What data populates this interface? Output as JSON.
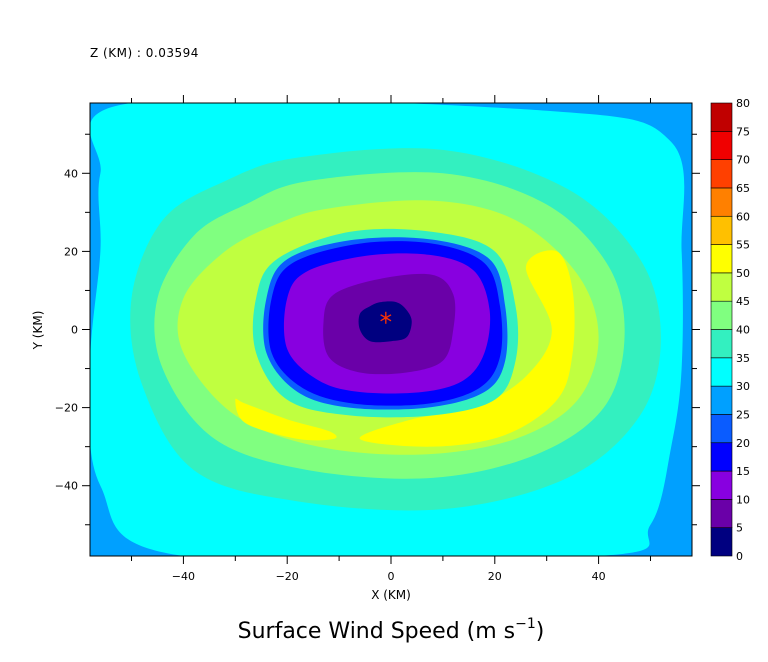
{
  "header": {
    "z_label": "Z (KM) : 0.03594"
  },
  "chart_data": {
    "type": "heatmap",
    "title": "Surface Wind Speed (m s",
    "title_exponent": "−1",
    "title_close": ")",
    "xlabel": "X (KM)",
    "ylabel": "Y (KM)",
    "xlim": [
      -58,
      58
    ],
    "ylim": [
      -58,
      58
    ],
    "x_ticks": [
      {
        "value": -40,
        "label": "−40"
      },
      {
        "value": -20,
        "label": "−20"
      },
      {
        "value": 0,
        "label": "0"
      },
      {
        "value": 20,
        "label": "20"
      },
      {
        "value": 40,
        "label": "40"
      }
    ],
    "y_ticks": [
      {
        "value": -40,
        "label": "−40"
      },
      {
        "value": -20,
        "label": "−20"
      },
      {
        "value": 0,
        "label": "0"
      },
      {
        "value": 20,
        "label": "20"
      },
      {
        "value": 40,
        "label": "40"
      }
    ],
    "center_marker": {
      "x": -1,
      "y": 3,
      "color": "#ff3300"
    },
    "colorbar": {
      "levels": [
        0,
        5,
        10,
        15,
        20,
        25,
        30,
        35,
        40,
        45,
        50,
        55,
        60,
        65,
        70,
        75,
        80
      ],
      "colors": [
        "#000080",
        "#6a00a8",
        "#8800e0",
        "#0000ff",
        "#0a5cff",
        "#00a0ff",
        "#00ffff",
        "#33f0c0",
        "#80ff80",
        "#c0ff40",
        "#ffff00",
        "#ffc000",
        "#ff8000",
        "#ff4000",
        "#f00000",
        "#c00000"
      ]
    },
    "contours": [
      {
        "level_index": 5,
        "points": [
          [
            -58,
            58
          ],
          [
            58,
            58
          ],
          [
            58,
            -58
          ],
          [
            -58,
            -58
          ]
        ]
      },
      {
        "level_index": 6,
        "points": [
          [
            -50,
            58
          ],
          [
            30,
            56
          ],
          [
            54,
            48
          ],
          [
            56,
            20
          ],
          [
            56,
            -10
          ],
          [
            54,
            -30
          ],
          [
            50,
            -50
          ],
          [
            40,
            -58
          ],
          [
            -40,
            -58
          ],
          [
            -56,
            -40
          ],
          [
            -58,
            -10
          ],
          [
            -56,
            20
          ],
          [
            -56,
            40
          ]
        ]
      },
      {
        "level_index": 7,
        "points": [
          [
            -18,
            44
          ],
          [
            10,
            46
          ],
          [
            34,
            36
          ],
          [
            48,
            18
          ],
          [
            52,
            -2
          ],
          [
            48,
            -22
          ],
          [
            34,
            -38
          ],
          [
            10,
            -46
          ],
          [
            -18,
            -44
          ],
          [
            -38,
            -36
          ],
          [
            -48,
            -14
          ],
          [
            -50,
            8
          ],
          [
            -44,
            28
          ],
          [
            -32,
            38
          ]
        ]
      },
      {
        "level_index": 8,
        "points": [
          [
            -16,
            38
          ],
          [
            10,
            40
          ],
          [
            30,
            32
          ],
          [
            42,
            16
          ],
          [
            45,
            -2
          ],
          [
            41,
            -20
          ],
          [
            28,
            -32
          ],
          [
            8,
            -38
          ],
          [
            -16,
            -36
          ],
          [
            -34,
            -28
          ],
          [
            -44,
            -10
          ],
          [
            -45,
            8
          ],
          [
            -38,
            24
          ],
          [
            -28,
            32
          ]
        ]
      },
      {
        "level_index": 9,
        "points": [
          [
            -12,
            31
          ],
          [
            8,
            33
          ],
          [
            24,
            28
          ],
          [
            36,
            14
          ],
          [
            40,
            -2
          ],
          [
            36,
            -18
          ],
          [
            24,
            -28
          ],
          [
            6,
            -32
          ],
          [
            -14,
            -30
          ],
          [
            -30,
            -22
          ],
          [
            -40,
            -6
          ],
          [
            -40,
            8
          ],
          [
            -32,
            20
          ],
          [
            -22,
            27
          ]
        ]
      },
      {
        "level_index": 10,
        "points": [
          [
            26,
            16
          ],
          [
            32,
            20
          ],
          [
            35,
            10
          ],
          [
            35,
            -6
          ],
          [
            32,
            -18
          ],
          [
            22,
            -27
          ],
          [
            8,
            -30
          ],
          [
            -6,
            -28
          ],
          [
            4,
            -23
          ],
          [
            16,
            -20
          ],
          [
            26,
            -12
          ],
          [
            31,
            0
          ]
        ]
      },
      {
        "level_index": 10,
        "points": [
          [
            -30,
            -18
          ],
          [
            -28,
            -19
          ],
          [
            -20,
            -23
          ],
          [
            -12,
            -26
          ],
          [
            -11,
            -28
          ],
          [
            -18,
            -28
          ],
          [
            -28,
            -24
          ]
        ]
      },
      {
        "level_index": 7,
        "points": [
          [
            -8,
            25
          ],
          [
            8,
            25
          ],
          [
            20,
            20
          ],
          [
            24,
            6
          ],
          [
            24,
            -8
          ],
          [
            20,
            -18
          ],
          [
            8,
            -22
          ],
          [
            -8,
            -22
          ],
          [
            -20,
            -18
          ],
          [
            -26,
            -6
          ],
          [
            -26,
            8
          ],
          [
            -22,
            18
          ]
        ]
      },
      {
        "level_index": 4,
        "points": [
          [
            -7,
            23
          ],
          [
            8,
            23
          ],
          [
            19,
            18
          ],
          [
            22,
            6
          ],
          [
            22,
            -8
          ],
          [
            18,
            -16
          ],
          [
            7,
            -20
          ],
          [
            -8,
            -20
          ],
          [
            -18,
            -16
          ],
          [
            -24,
            -6
          ],
          [
            -24,
            8
          ],
          [
            -20,
            18
          ]
        ]
      },
      {
        "level_index": 3,
        "points": [
          [
            -6,
            22
          ],
          [
            8,
            22
          ],
          [
            18,
            17
          ],
          [
            21,
            6
          ],
          [
            21,
            -7
          ],
          [
            17,
            -15
          ],
          [
            7,
            -19
          ],
          [
            -7,
            -19
          ],
          [
            -17,
            -15
          ],
          [
            -23,
            -6
          ],
          [
            -23,
            8
          ],
          [
            -19,
            17
          ]
        ]
      },
      {
        "level_index": 2,
        "points": [
          [
            -4,
            19
          ],
          [
            8,
            19
          ],
          [
            16,
            15
          ],
          [
            19,
            5
          ],
          [
            18,
            -6
          ],
          [
            14,
            -13
          ],
          [
            6,
            -16
          ],
          [
            -6,
            -16
          ],
          [
            -14,
            -13
          ],
          [
            -20,
            -5
          ],
          [
            -20,
            8
          ],
          [
            -16,
            15
          ]
        ]
      },
      {
        "level_index": 1,
        "points": [
          [
            -2,
            13
          ],
          [
            8,
            14
          ],
          [
            12,
            9
          ],
          [
            12,
            0
          ],
          [
            10,
            -8
          ],
          [
            3,
            -11
          ],
          [
            -6,
            -11
          ],
          [
            -12,
            -7
          ],
          [
            -13,
            2
          ],
          [
            -11,
            9
          ]
        ]
      },
      {
        "level_index": 0,
        "points": [
          [
            -2,
            7
          ],
          [
            1,
            7
          ],
          [
            3,
            5
          ],
          [
            4,
            2
          ],
          [
            3,
            -2
          ],
          [
            0,
            -3
          ],
          [
            -4,
            -3
          ],
          [
            -6,
            0
          ],
          [
            -6,
            4
          ],
          [
            -4,
            6
          ]
        ]
      }
    ]
  }
}
